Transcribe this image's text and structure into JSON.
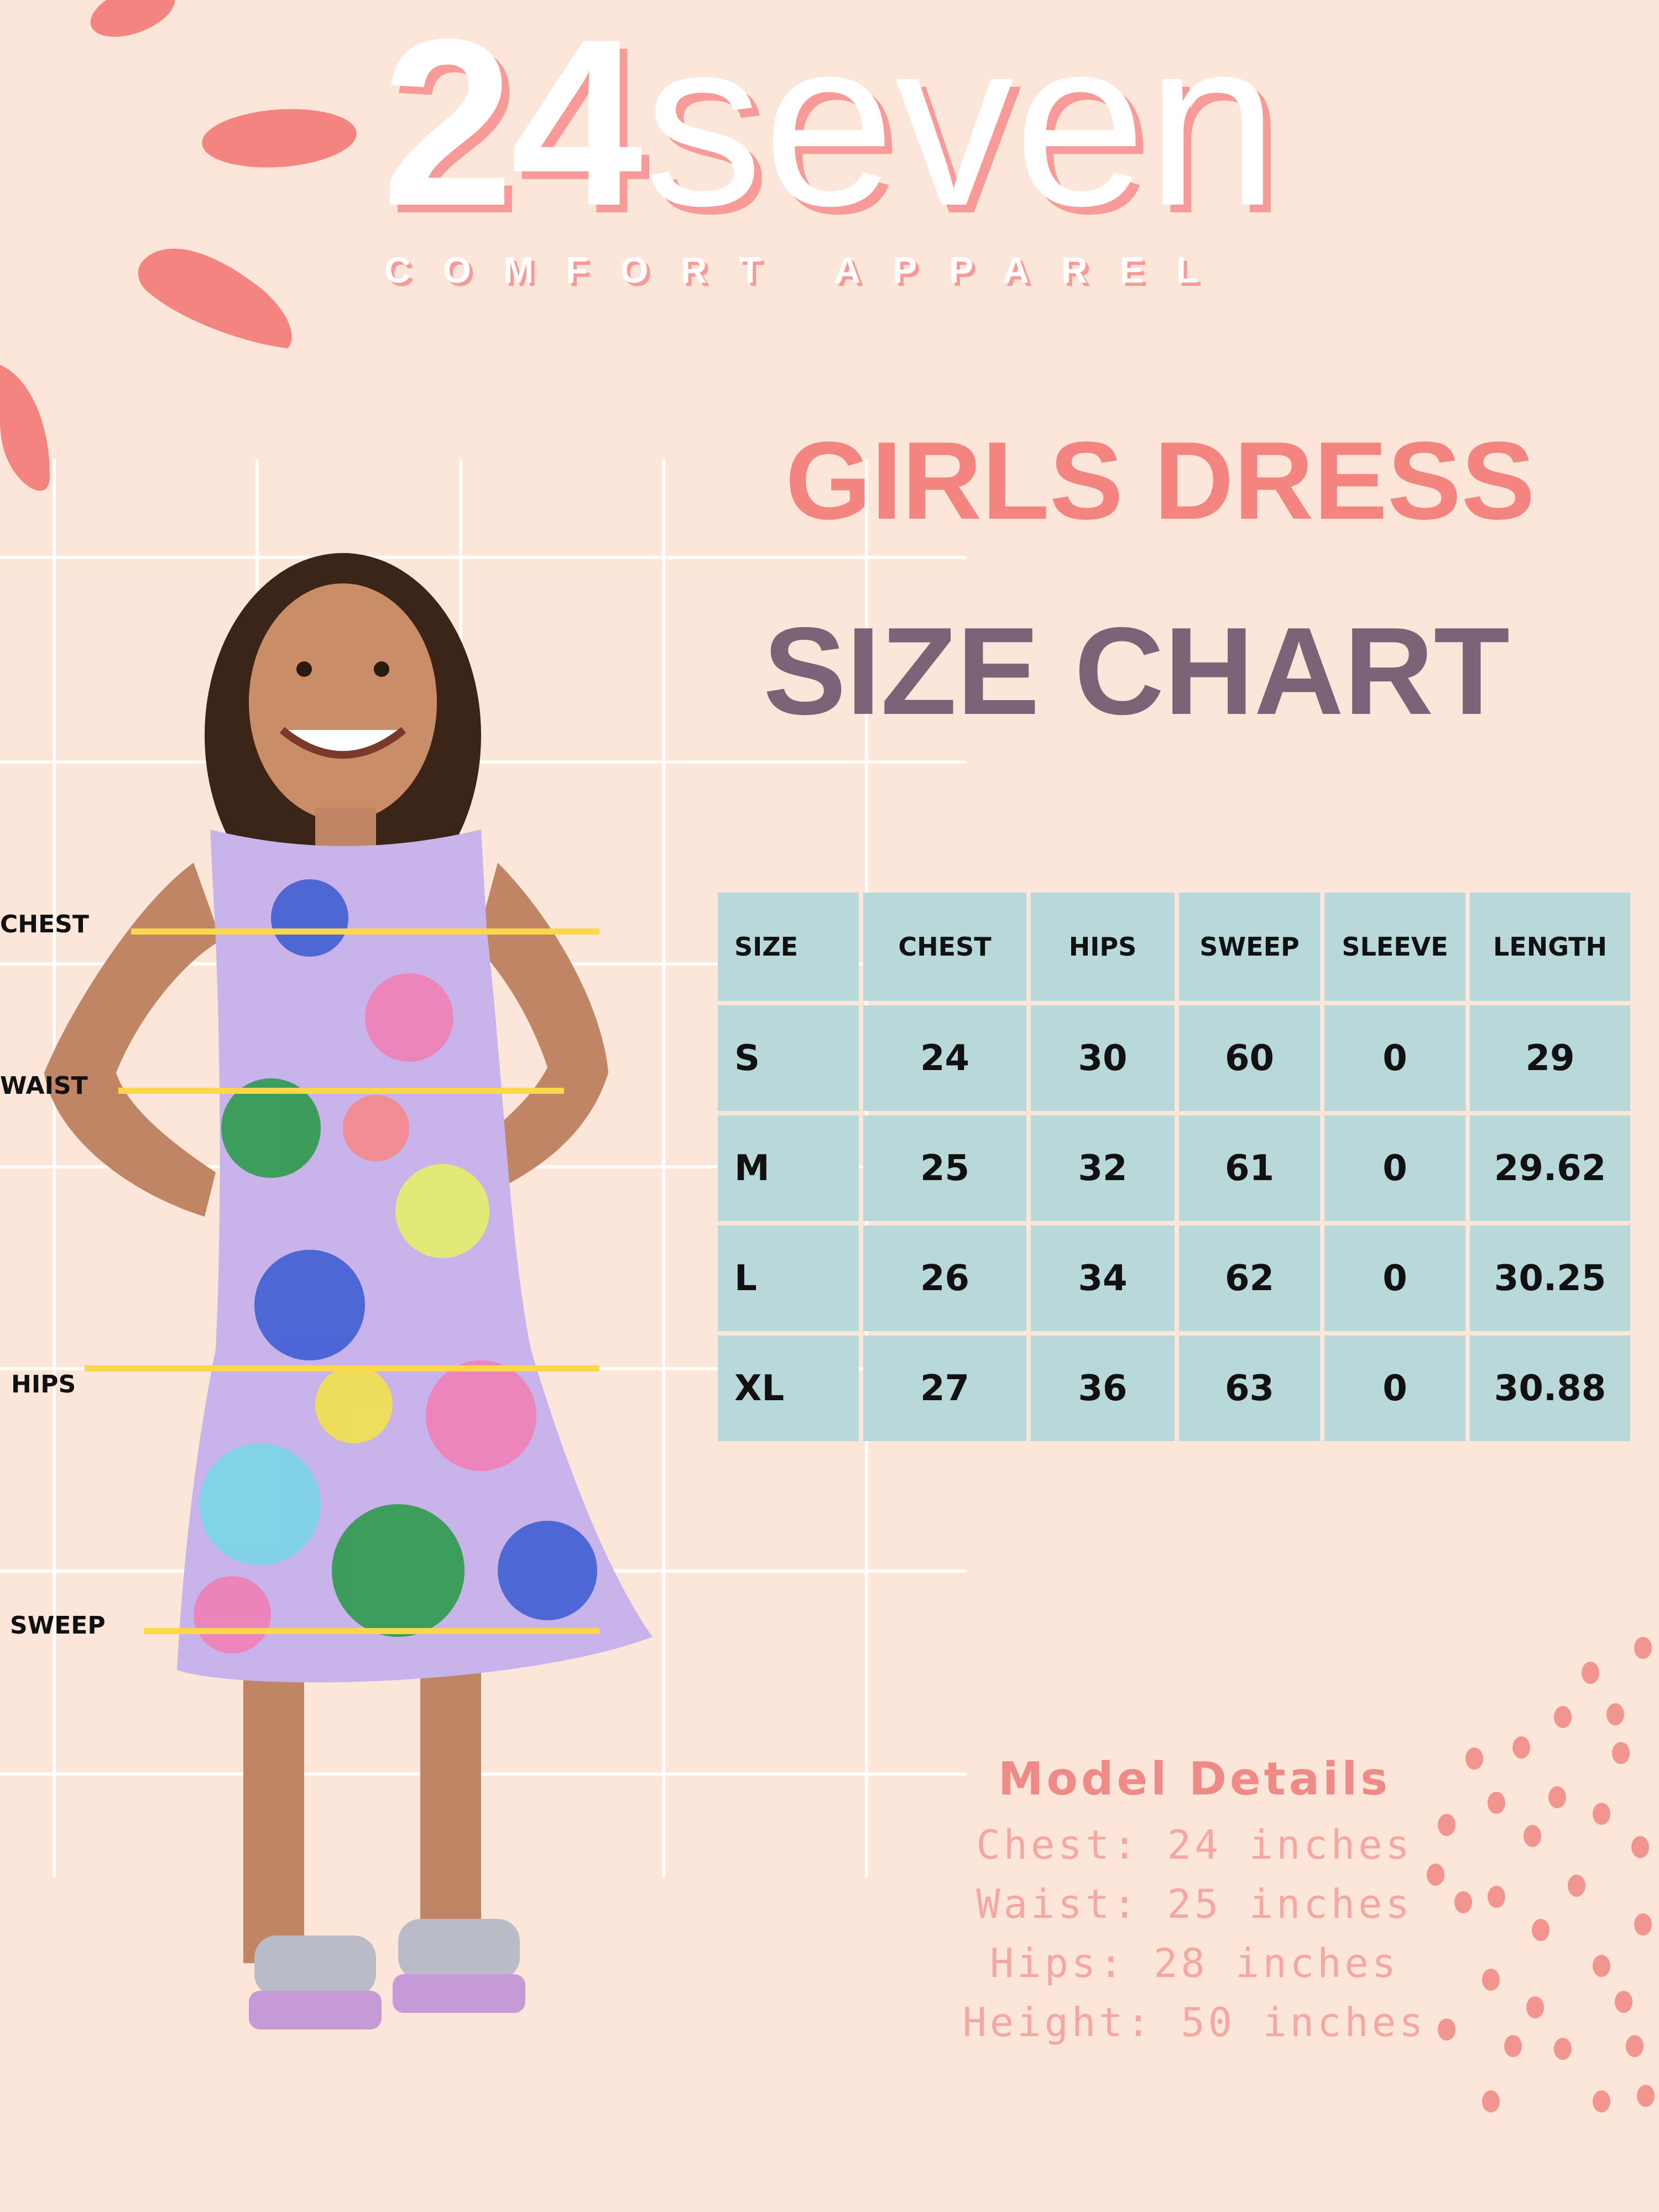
{
  "brand": {
    "logo_number": "24",
    "logo_word": "seven",
    "tagline": "COMFORT APPAREL"
  },
  "heading": {
    "line1": "GIRLS DRESS",
    "line2": "SIZE CHART"
  },
  "measurement_labels": {
    "chest": "CHEST",
    "waist": "WAIST",
    "hips": "HIPS",
    "sweep": "SWEEP"
  },
  "size_table": {
    "columns": [
      "SIZE",
      "CHEST",
      "HIPS",
      "SWEEP",
      "SLEEVE",
      "LENGTH"
    ],
    "rows": [
      [
        "S",
        "24",
        "30",
        "60",
        "0",
        "29"
      ],
      [
        "M",
        "25",
        "32",
        "61",
        "0",
        "29.62"
      ],
      [
        "L",
        "26",
        "34",
        "62",
        "0",
        "30.25"
      ],
      [
        "XL",
        "27",
        "36",
        "63",
        "0",
        "30.88"
      ]
    ]
  },
  "model_details": {
    "title": "Model Details",
    "lines": [
      "Chest: 24 inches",
      "Waist: 25 inches",
      "Hips: 28 inches",
      "Height: 50 inches"
    ]
  },
  "colors": {
    "background": "#fbe6d9",
    "coral": "#f4847f",
    "plum": "#7e6378",
    "table_cell": "#b9d8d9",
    "measure_line": "#fbd84a"
  }
}
